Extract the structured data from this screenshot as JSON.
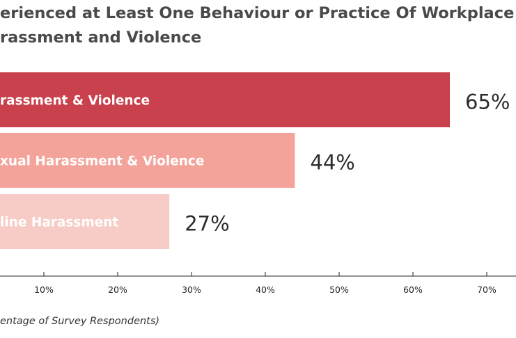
{
  "chart_data": {
    "type": "bar",
    "orientation": "horizontal",
    "title_lines": [
      "erienced at Least One Behaviour or Practice Of Workplace",
      "rassment and Violence"
    ],
    "categories": [
      "rassment & Violence",
      "xual Harassment & Violence",
      "line Harassment"
    ],
    "values": [
      65,
      44,
      27
    ],
    "value_labels": [
      "65%",
      "44%",
      "27%"
    ],
    "colors": [
      "#c8414c",
      "#f4a39a",
      "#f7ccc6"
    ],
    "x_ticks": [
      10,
      20,
      30,
      40,
      50,
      60,
      70
    ],
    "x_tick_labels": [
      "10%",
      "20%",
      "30%",
      "40%",
      "50%",
      "60%",
      "70%"
    ],
    "xlim": [
      0,
      70
    ],
    "xlabel": "entage of Survey Respondents)",
    "grid": false,
    "legend": "none"
  }
}
